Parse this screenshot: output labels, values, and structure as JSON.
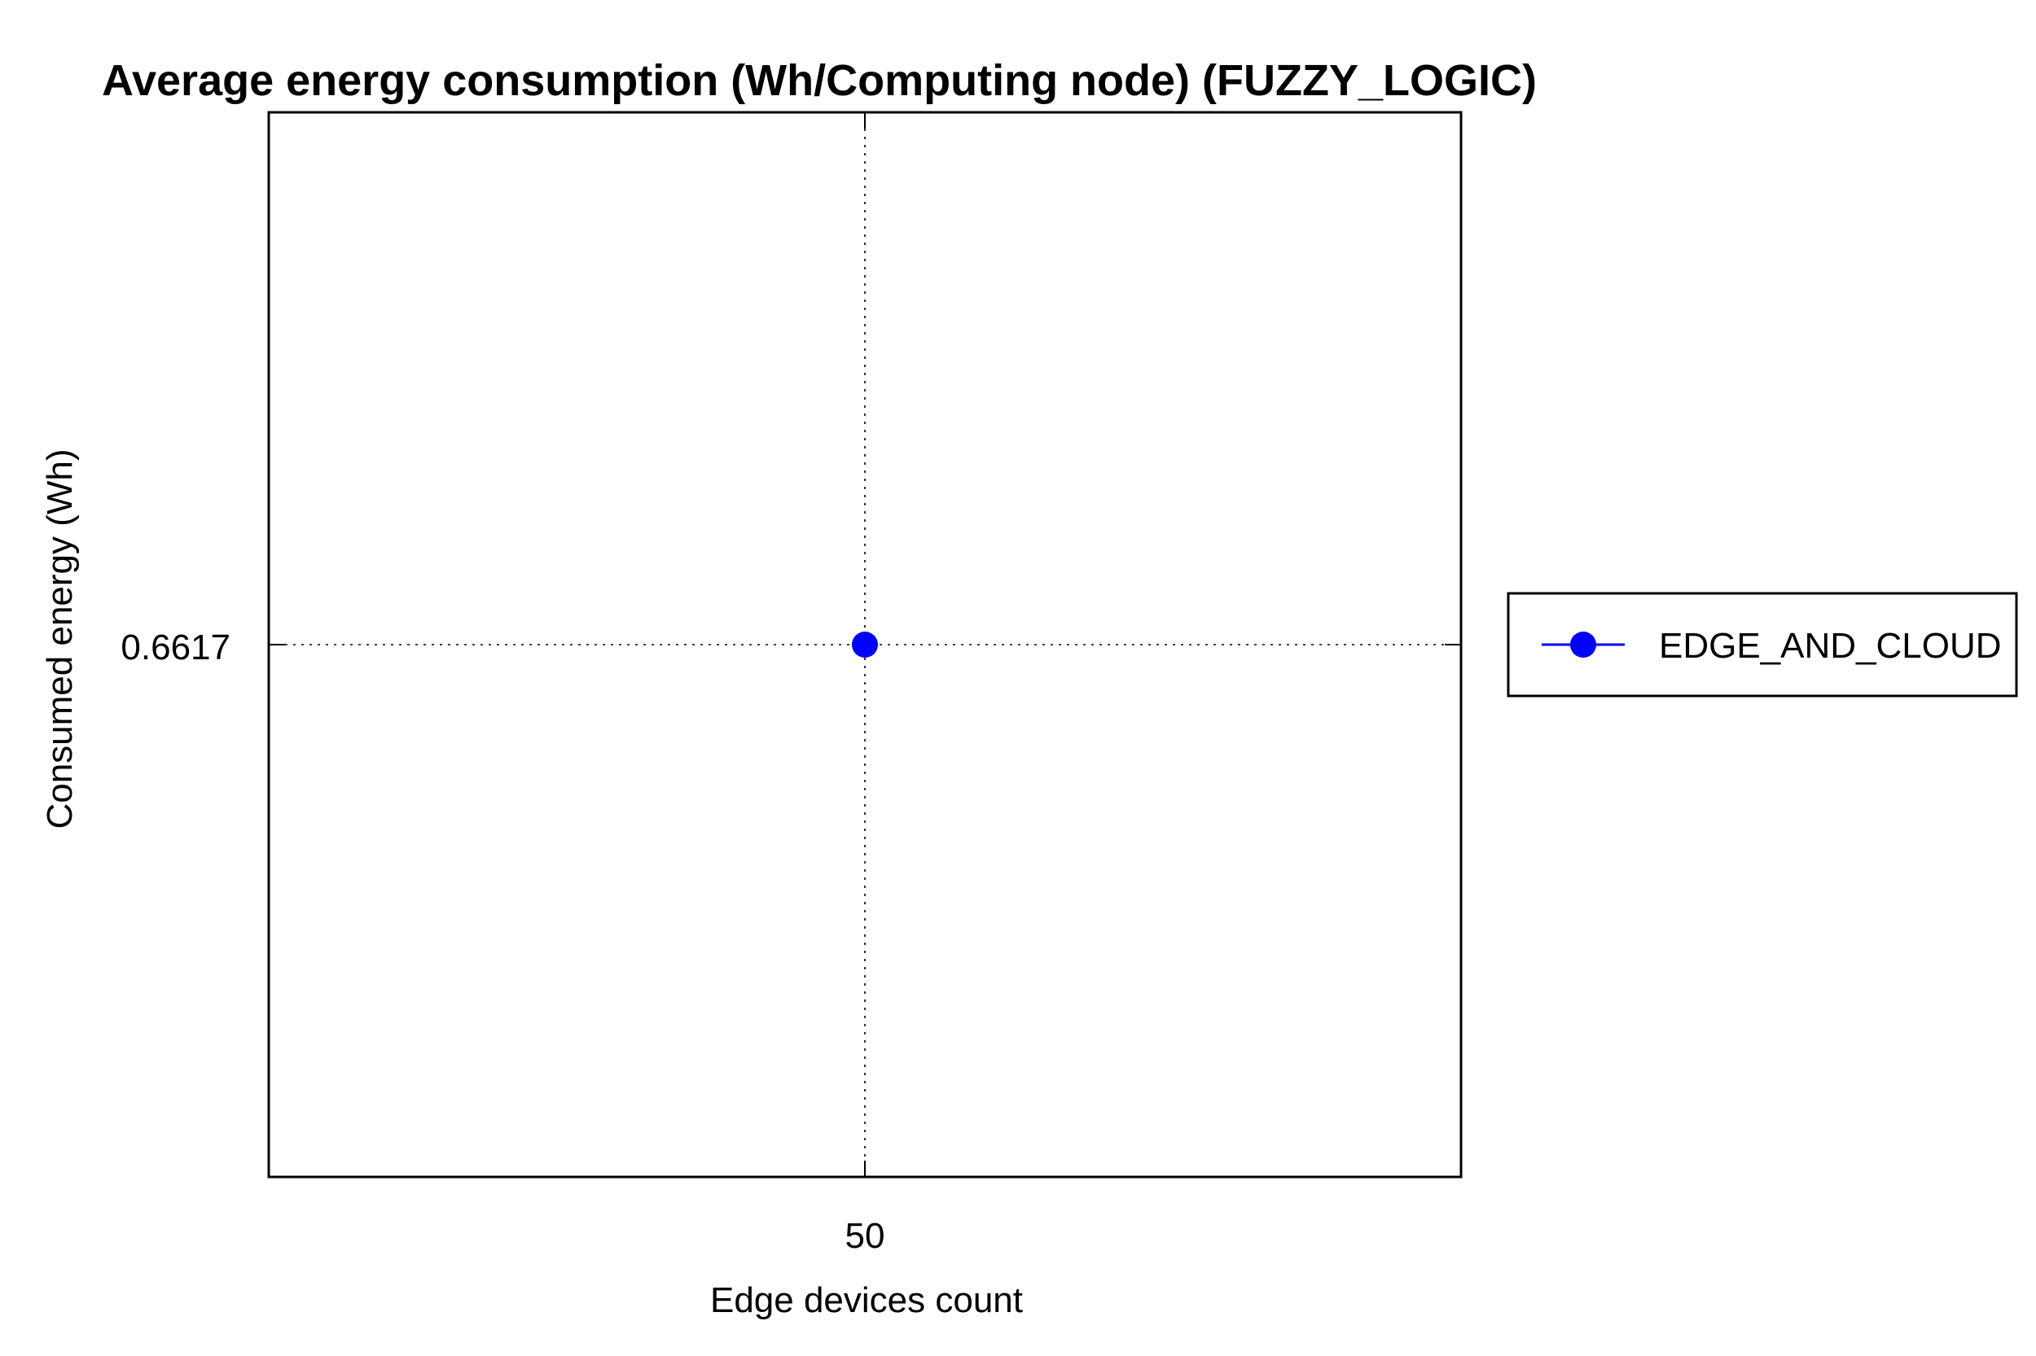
{
  "chart_data": {
    "type": "line",
    "title": "Average energy consumption (Wh/Computing node) (FUZZY_LOGIC)",
    "xlabel": "Edge devices count",
    "ylabel": "Consumed energy (Wh)",
    "x": [
      50
    ],
    "x_ticks": [
      "50"
    ],
    "y_ticks": [
      "0.6617"
    ],
    "series": [
      {
        "name": "EDGE_AND_CLOUD",
        "x": [
          50
        ],
        "values": [
          0.6617
        ],
        "color": "#0000ff",
        "marker": "circle"
      }
    ],
    "grid": true,
    "grid_style": "dotted",
    "legend_position": "right"
  }
}
